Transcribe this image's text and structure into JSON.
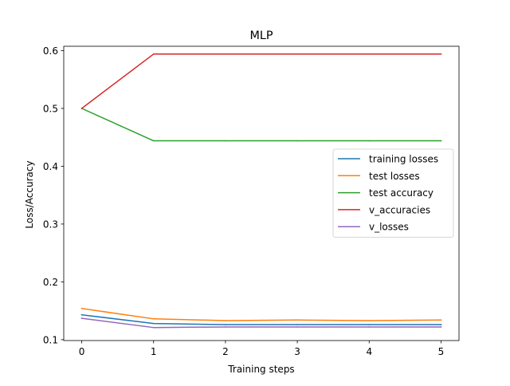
{
  "chart_data": {
    "type": "line",
    "title": "MLP",
    "xlabel": "Training steps",
    "ylabel": "Loss/Accuracy",
    "x": [
      0,
      1,
      2,
      3,
      4,
      5
    ],
    "xlim": [
      -0.25,
      5.25
    ],
    "ylim": [
      0.0985,
      0.6075
    ],
    "xticks": [
      "0",
      "1",
      "2",
      "3",
      "4",
      "5"
    ],
    "yticks": [
      "0.1",
      "0.2",
      "0.3",
      "0.4",
      "0.5",
      "0.6"
    ],
    "grid": false,
    "legend_position": "center-right",
    "series": [
      {
        "name": "training losses",
        "color": "#1f77b4",
        "values": [
          0.143,
          0.128,
          0.126,
          0.126,
          0.126,
          0.126
        ]
      },
      {
        "name": "test losses",
        "color": "#ff7f0e",
        "values": [
          0.154,
          0.136,
          0.133,
          0.134,
          0.133,
          0.134
        ]
      },
      {
        "name": "test accuracy",
        "color": "#2ca02c",
        "values": [
          0.5,
          0.444,
          0.444,
          0.444,
          0.444,
          0.444
        ]
      },
      {
        "name": "v_accuracies",
        "color": "#d62728",
        "values": [
          0.5,
          0.594,
          0.594,
          0.594,
          0.594,
          0.594
        ]
      },
      {
        "name": "v_losses",
        "color": "#9467bd",
        "values": [
          0.137,
          0.121,
          0.122,
          0.122,
          0.122,
          0.122
        ]
      }
    ]
  }
}
